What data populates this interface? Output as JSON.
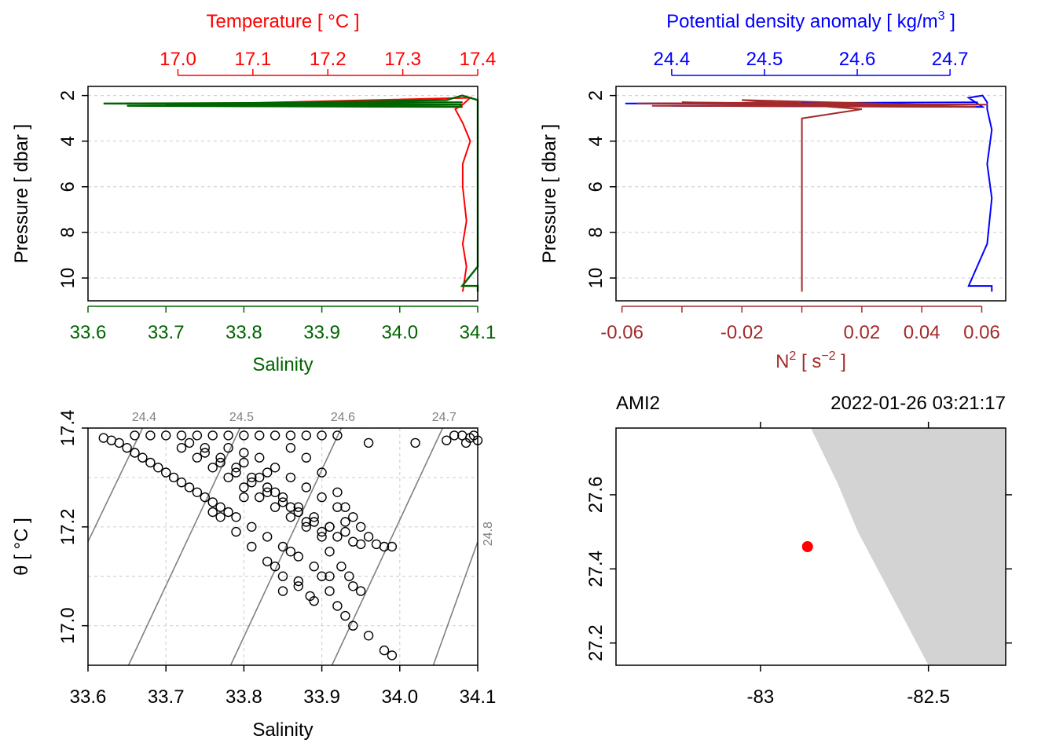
{
  "colors": {
    "temperature": "#ff0000",
    "salinity": "#006400",
    "density": "#0000ff",
    "n2": "#a52a2a",
    "grid": "#d3d3d3",
    "land": "#d3d3d3",
    "isopycnal": "#808080",
    "station": "#ff0000"
  },
  "chart_data": [
    {
      "type": "line",
      "panel": "temperature-salinity-profile",
      "y_label": "Pressure [ dbar ]",
      "y_range": [
        11.0,
        1.6
      ],
      "y_ticks": [
        {
          "v": 2,
          "t": "2"
        },
        {
          "v": 4,
          "t": "4"
        },
        {
          "v": 6,
          "t": "6"
        },
        {
          "v": 8,
          "t": "8"
        },
        {
          "v": 10,
          "t": "10"
        }
      ],
      "top_axis": {
        "label": "Temperature [ °C ]",
        "range": [
          16.88,
          17.4
        ],
        "ticks": [
          {
            "v": 17.0,
            "t": "17.0"
          },
          {
            "v": 17.1,
            "t": "17.1"
          },
          {
            "v": 17.2,
            "t": "17.2"
          },
          {
            "v": 17.3,
            "t": "17.3"
          },
          {
            "v": 17.4,
            "t": "17.4"
          }
        ]
      },
      "bottom_axis": {
        "label": "Salinity",
        "range": [
          33.6,
          34.1
        ],
        "ticks": [
          {
            "v": 33.6,
            "t": "33.6"
          },
          {
            "v": 33.7,
            "t": "33.7"
          },
          {
            "v": 33.8,
            "t": "33.8"
          },
          {
            "v": 33.9,
            "t": "33.9"
          },
          {
            "v": 34.0,
            "t": "34.0"
          },
          {
            "v": 34.1,
            "t": "34.1"
          }
        ]
      },
      "series": [
        {
          "variable": "temperature",
          "axis": "top",
          "x": [
            17.38,
            16.93,
            17.38,
            16.98,
            17.38,
            17.0,
            17.39,
            17.38,
            17.37,
            17.38,
            17.39,
            17.38,
            17.38,
            17.385,
            17.38,
            17.385,
            17.38
          ],
          "y": [
            2.3,
            2.35,
            2.4,
            2.45,
            2.5,
            2.4,
            2.1,
            2.4,
            2.6,
            3.2,
            4.0,
            5.0,
            6.0,
            7.5,
            8.5,
            9.5,
            10.6
          ]
        },
        {
          "variable": "salinity",
          "axis": "bottom",
          "x": [
            34.08,
            33.62,
            34.08,
            33.65,
            34.08,
            33.7,
            34.06,
            34.08,
            34.1,
            34.1,
            34.1,
            34.1,
            34.1,
            34.1,
            34.1,
            34.08,
            34.1,
            34.1
          ],
          "y": [
            2.3,
            2.35,
            2.4,
            2.45,
            2.5,
            2.4,
            2.2,
            2.0,
            2.2,
            2.6,
            3.5,
            5.0,
            6.5,
            8.0,
            9.5,
            10.35,
            10.35,
            10.6
          ]
        }
      ]
    },
    {
      "type": "line",
      "panel": "density-n2-profile",
      "y_label": "Pressure [ dbar ]",
      "y_range": [
        11.0,
        1.6
      ],
      "y_ticks": [
        {
          "v": 2,
          "t": "2"
        },
        {
          "v": 4,
          "t": "4"
        },
        {
          "v": 6,
          "t": "6"
        },
        {
          "v": 8,
          "t": "8"
        },
        {
          "v": 10,
          "t": "10"
        }
      ],
      "top_axis": {
        "label_prefix": "Potential density anomaly [ kg/m",
        "label_sup": "3",
        "label_suffix": " ]",
        "range": [
          24.34,
          24.76
        ],
        "ticks": [
          {
            "v": 24.4,
            "t": "24.4"
          },
          {
            "v": 24.5,
            "t": "24.5"
          },
          {
            "v": 24.6,
            "t": "24.6"
          },
          {
            "v": 24.7,
            "t": "24.7"
          }
        ]
      },
      "bottom_axis": {
        "label_prefix": "N",
        "label_sup": "2",
        "label_mid": " [ s",
        "label_sup2": "−2",
        "label_suffix": " ]",
        "range": [
          -0.062,
          0.068
        ],
        "ticks": [
          {
            "v": -0.06,
            "t": "-0.06"
          },
          {
            "v": -0.04,
            "t": ""
          },
          {
            "v": -0.02,
            "t": "-0.02"
          },
          {
            "v": 0.0,
            "t": ""
          },
          {
            "v": 0.02,
            "t": "0.02"
          },
          {
            "v": 0.04,
            "t": "0.04"
          },
          {
            "v": 0.06,
            "t": "0.06"
          }
        ]
      },
      "series": [
        {
          "variable": "density",
          "axis": "top",
          "x": [
            24.73,
            24.35,
            24.73,
            24.4,
            24.735,
            24.72,
            24.735,
            24.74,
            24.74,
            24.745,
            24.74,
            24.745,
            24.74,
            24.72,
            24.745,
            24.745
          ],
          "y": [
            2.3,
            2.35,
            2.4,
            2.45,
            2.5,
            2.1,
            2.0,
            2.3,
            2.6,
            3.5,
            5.0,
            6.5,
            8.5,
            10.35,
            10.35,
            10.6
          ]
        },
        {
          "variable": "n2",
          "axis": "bottom",
          "x": [
            0.0,
            -0.055,
            0.062,
            -0.05,
            0.058,
            -0.04,
            0.04,
            -0.02,
            0.02,
            0.0,
            0.0,
            0.0,
            0.0,
            0.0
          ],
          "y": [
            2.3,
            2.35,
            2.4,
            2.45,
            2.5,
            2.3,
            2.4,
            2.2,
            2.6,
            3.0,
            5.0,
            7.5,
            9.5,
            10.6
          ]
        }
      ]
    },
    {
      "type": "scatter",
      "panel": "ts-diagram",
      "x_label": "Salinity",
      "y_label": "θ [ °C ]",
      "xlim": [
        33.6,
        34.1
      ],
      "ylim": [
        16.92,
        17.4
      ],
      "x_ticks": [
        {
          "v": 33.6,
          "t": "33.6"
        },
        {
          "v": 33.7,
          "t": "33.7"
        },
        {
          "v": 33.8,
          "t": "33.8"
        },
        {
          "v": 33.9,
          "t": "33.9"
        },
        {
          "v": 34.0,
          "t": "34.0"
        },
        {
          "v": 34.1,
          "t": "34.1"
        }
      ],
      "y_ticks": [
        {
          "v": 17.0,
          "t": "17.0"
        },
        {
          "v": 17.2,
          "t": "17.2"
        },
        {
          "v": 17.4,
          "t": "17.4"
        }
      ],
      "isopycnals": [
        {
          "label": "24.4",
          "points": [
            [
              33.6,
              17.17
            ],
            [
              33.67,
              17.4
            ]
          ]
        },
        {
          "label": "24.5",
          "points": [
            [
              33.652,
              16.92
            ],
            [
              33.795,
              17.4
            ]
          ]
        },
        {
          "label": "24.6",
          "points": [
            [
              33.783,
              16.92
            ],
            [
              33.925,
              17.4
            ]
          ]
        },
        {
          "label": "24.7",
          "points": [
            [
              33.913,
              16.92
            ],
            [
              34.055,
              17.4
            ]
          ]
        },
        {
          "label": "24.8",
          "points": [
            [
              34.043,
              16.92
            ],
            [
              34.1,
              17.17
            ]
          ]
        }
      ],
      "points": [
        [
          33.62,
          17.38
        ],
        [
          33.63,
          17.375
        ],
        [
          33.64,
          17.37
        ],
        [
          33.65,
          17.36
        ],
        [
          33.66,
          17.35
        ],
        [
          33.67,
          17.34
        ],
        [
          33.68,
          17.33
        ],
        [
          33.69,
          17.32
        ],
        [
          33.7,
          17.31
        ],
        [
          33.71,
          17.3
        ],
        [
          33.72,
          17.29
        ],
        [
          33.73,
          17.28
        ],
        [
          33.74,
          17.27
        ],
        [
          33.75,
          17.26
        ],
        [
          33.76,
          17.25
        ],
        [
          33.77,
          17.24
        ],
        [
          33.78,
          17.23
        ],
        [
          33.66,
          17.385
        ],
        [
          33.68,
          17.385
        ],
        [
          33.7,
          17.385
        ],
        [
          33.72,
          17.385
        ],
        [
          33.74,
          17.385
        ],
        [
          33.76,
          17.385
        ],
        [
          33.78,
          17.385
        ],
        [
          33.8,
          17.385
        ],
        [
          33.82,
          17.385
        ],
        [
          33.84,
          17.385
        ],
        [
          33.86,
          17.385
        ],
        [
          33.88,
          17.385
        ],
        [
          33.9,
          17.385
        ],
        [
          33.92,
          17.385
        ],
        [
          33.72,
          17.36
        ],
        [
          33.74,
          17.34
        ],
        [
          33.76,
          17.32
        ],
        [
          33.78,
          17.3
        ],
        [
          33.8,
          17.28
        ],
        [
          33.82,
          17.26
        ],
        [
          33.84,
          17.24
        ],
        [
          33.86,
          17.22
        ],
        [
          33.88,
          17.2
        ],
        [
          33.9,
          17.19
        ],
        [
          33.92,
          17.18
        ],
        [
          33.94,
          17.17
        ],
        [
          33.95,
          17.165
        ],
        [
          33.97,
          17.165
        ],
        [
          33.98,
          17.16
        ],
        [
          33.99,
          17.16
        ],
        [
          33.75,
          17.36
        ],
        [
          33.77,
          17.34
        ],
        [
          33.79,
          17.32
        ],
        [
          33.81,
          17.3
        ],
        [
          33.83,
          17.28
        ],
        [
          33.85,
          17.26
        ],
        [
          33.87,
          17.24
        ],
        [
          33.89,
          17.22
        ],
        [
          33.91,
          17.2
        ],
        [
          33.93,
          17.19
        ],
        [
          33.8,
          17.33
        ],
        [
          33.82,
          17.3
        ],
        [
          33.84,
          17.27
        ],
        [
          33.86,
          17.24
        ],
        [
          33.88,
          17.21
        ],
        [
          33.9,
          17.18
        ],
        [
          33.91,
          17.15
        ],
        [
          33.925,
          17.12
        ],
        [
          33.935,
          17.1
        ],
        [
          33.94,
          17.08
        ],
        [
          33.95,
          17.07
        ],
        [
          33.79,
          17.22
        ],
        [
          33.81,
          17.2
        ],
        [
          33.83,
          17.18
        ],
        [
          33.85,
          17.16
        ],
        [
          33.87,
          17.14
        ],
        [
          33.89,
          17.12
        ],
        [
          33.91,
          17.1
        ],
        [
          33.77,
          17.22
        ],
        [
          33.79,
          17.19
        ],
        [
          33.81,
          17.16
        ],
        [
          33.83,
          17.13
        ],
        [
          33.85,
          17.1
        ],
        [
          33.87,
          17.08
        ],
        [
          33.885,
          17.06
        ],
        [
          33.89,
          17.05
        ],
        [
          33.9,
          17.1
        ],
        [
          33.91,
          17.07
        ],
        [
          33.92,
          17.04
        ],
        [
          33.93,
          17.02
        ],
        [
          33.94,
          17.0
        ],
        [
          33.96,
          16.98
        ],
        [
          33.98,
          16.95
        ],
        [
          33.99,
          16.94
        ],
        [
          33.76,
          17.23
        ],
        [
          33.8,
          17.26
        ],
        [
          33.83,
          17.31
        ],
        [
          33.86,
          17.36
        ],
        [
          33.88,
          17.34
        ],
        [
          33.9,
          17.31
        ],
        [
          33.92,
          17.27
        ],
        [
          33.93,
          17.24
        ],
        [
          33.96,
          17.37
        ],
        [
          34.02,
          17.37
        ],
        [
          34.06,
          17.375
        ],
        [
          34.07,
          17.385
        ],
        [
          34.08,
          17.385
        ],
        [
          34.09,
          17.38
        ],
        [
          34.1,
          17.375
        ],
        [
          34.085,
          17.37
        ],
        [
          34.095,
          17.385
        ],
        [
          33.73,
          17.37
        ],
        [
          33.75,
          17.35
        ],
        [
          33.77,
          17.33
        ],
        [
          33.79,
          17.31
        ],
        [
          33.81,
          17.29
        ],
        [
          33.83,
          17.27
        ],
        [
          33.85,
          17.25
        ],
        [
          33.87,
          17.23
        ],
        [
          33.89,
          17.21
        ],
        [
          33.91,
          17.2
        ],
        [
          33.93,
          17.21
        ],
        [
          33.78,
          17.36
        ],
        [
          33.8,
          17.35
        ],
        [
          33.82,
          17.34
        ],
        [
          33.84,
          17.32
        ],
        [
          33.86,
          17.3
        ],
        [
          33.88,
          17.28
        ],
        [
          33.9,
          17.26
        ],
        [
          33.92,
          17.24
        ],
        [
          33.94,
          17.22
        ],
        [
          33.95,
          17.2
        ],
        [
          33.96,
          17.18
        ],
        [
          33.86,
          17.15
        ],
        [
          33.84,
          17.12
        ],
        [
          33.87,
          17.09
        ],
        [
          33.85,
          17.07
        ]
      ]
    },
    {
      "type": "map",
      "panel": "station-map",
      "station_label": "AMI2",
      "datetime": "2022-01-26 03:21:17",
      "lon_range": [
        -83.43,
        -82.27
      ],
      "lat_range": [
        27.14,
        27.78
      ],
      "x_ticks": [
        {
          "v": -83.0,
          "t": "-83"
        },
        {
          "v": -82.5,
          "t": "-82.5"
        }
      ],
      "y_ticks": [
        {
          "v": 27.2,
          "t": "27.2"
        },
        {
          "v": 27.4,
          "t": "27.4"
        },
        {
          "v": 27.6,
          "t": "27.6"
        }
      ],
      "station": {
        "lon": -82.86,
        "lat": 27.46
      },
      "land": [
        [
          -82.85,
          27.78
        ],
        [
          -82.27,
          27.78
        ],
        [
          -82.27,
          27.14
        ],
        [
          -82.5,
          27.14
        ],
        [
          -82.71,
          27.5
        ],
        [
          -82.77,
          27.63
        ]
      ]
    }
  ]
}
